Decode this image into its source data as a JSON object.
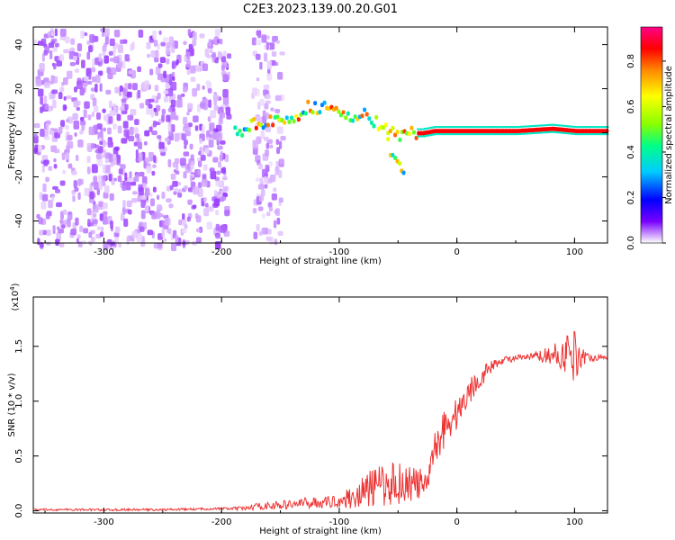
{
  "title": "C2E3.2023.139.00.20.G01",
  "chart_data": [
    {
      "type": "heatmap",
      "xlabel": "Height of straight line (km)",
      "ylabel": "Frequency (Hz)",
      "xlim": [
        -360,
        128
      ],
      "ylim": [
        -50,
        48
      ],
      "x_ticks": [
        -300,
        -200,
        -100,
        0,
        100
      ],
      "x_tick_labels": [
        "-300",
        "-200",
        "-100",
        "0",
        "100"
      ],
      "y_ticks": [
        -40,
        -20,
        0,
        20,
        40
      ],
      "y_tick_labels": [
        "-40",
        "-20",
        "0",
        "20",
        "40"
      ],
      "colorbar": {
        "label": "Normalized spectral amplitude",
        "range": [
          0.0,
          0.95
        ],
        "ticks": [
          0.0,
          0.2,
          0.4,
          0.6,
          0.8
        ],
        "tick_labels": [
          "0.0",
          "0.2",
          "0.4",
          "0.6",
          "0.8"
        ],
        "colormap": [
          "#ffffff",
          "#cc99ff",
          "#7700ff",
          "#0000ff",
          "#00ccff",
          "#00ff88",
          "#88ff00",
          "#ffff00",
          "#ff8800",
          "#ff0000",
          "#ff0088"
        ]
      },
      "features": [
        {
          "name": "noise",
          "x_range": [
            -360,
            -195
          ],
          "freq_range": [
            -50,
            48
          ],
          "amplitude": 0.12
        },
        {
          "name": "noise-band",
          "x_range": [
            -175,
            -150
          ],
          "freq_range": [
            -50,
            48
          ],
          "amplitude": 0.1
        },
        {
          "name": "track",
          "points": [
            [
              -190,
              0
            ],
            [
              -180,
              2
            ],
            [
              -170,
              5
            ],
            [
              -160,
              6
            ],
            [
              -150,
              4
            ],
            [
              -140,
              6
            ],
            [
              -130,
              11
            ],
            [
              -120,
              12
            ],
            [
              -110,
              11
            ],
            [
              -100,
              9
            ],
            [
              -90,
              7
            ],
            [
              -80,
              8
            ],
            [
              -70,
              5
            ],
            [
              -60,
              2
            ],
            [
              -50,
              -2
            ],
            [
              -40,
              0
            ],
            [
              -30,
              0
            ],
            [
              -20,
              1
            ],
            [
              0,
              1
            ],
            [
              50,
              1
            ],
            [
              80,
              2
            ],
            [
              100,
              1
            ],
            [
              128,
              1
            ]
          ]
        },
        {
          "name": "tail",
          "points": [
            [
              -60,
              -5
            ],
            [
              -52,
              -13
            ],
            [
              -45,
              -18
            ]
          ]
        }
      ],
      "grid": false
    },
    {
      "type": "line",
      "xlabel": "Height of straight line (km)",
      "ylabel": "SNR (10 * v/v)",
      "y_exponent_label": "(x10",
      "y_exponent": "4",
      "y_exponent_close": ")",
      "xlim": [
        -360,
        128
      ],
      "ylim": [
        -0.02,
        1.95
      ],
      "x_ticks": [
        -300,
        -200,
        -100,
        0,
        100
      ],
      "x_tick_labels": [
        "-300",
        "-200",
        "-100",
        "0",
        "100"
      ],
      "y_ticks": [
        0.0,
        0.5,
        1.0,
        1.5
      ],
      "y_tick_labels": [
        "0.0",
        "0.5",
        "1.0",
        "1.5"
      ],
      "series": [
        {
          "color": "#ee3333",
          "x": [
            -360,
            -300,
            -250,
            -200,
            -180,
            -170,
            -150,
            -130,
            -110,
            -100,
            -90,
            -80,
            -70,
            -60,
            -50,
            -40,
            -30,
            -25,
            -20,
            -10,
            0,
            10,
            20,
            30,
            40,
            60,
            80,
            100,
            110,
            128
          ],
          "y": [
            0.01,
            0.01,
            0.01,
            0.02,
            0.02,
            0.04,
            0.05,
            0.07,
            0.08,
            0.09,
            0.12,
            0.17,
            0.22,
            0.24,
            0.26,
            0.25,
            0.24,
            0.22,
            0.55,
            0.78,
            0.88,
            1.08,
            1.22,
            1.32,
            1.38,
            1.4,
            1.42,
            1.43,
            1.4,
            1.4
          ],
          "noise_amplitude": [
            0.01,
            0.01,
            0.01,
            0.01,
            0.02,
            0.03,
            0.04,
            0.05,
            0.05,
            0.06,
            0.1,
            0.15,
            0.18,
            0.2,
            0.2,
            0.18,
            0.15,
            0.1,
            0.15,
            0.2,
            0.15,
            0.12,
            0.1,
            0.05,
            0.03,
            0.03,
            0.08,
            0.25,
            0.04,
            0.02
          ]
        }
      ],
      "grid": false
    }
  ]
}
